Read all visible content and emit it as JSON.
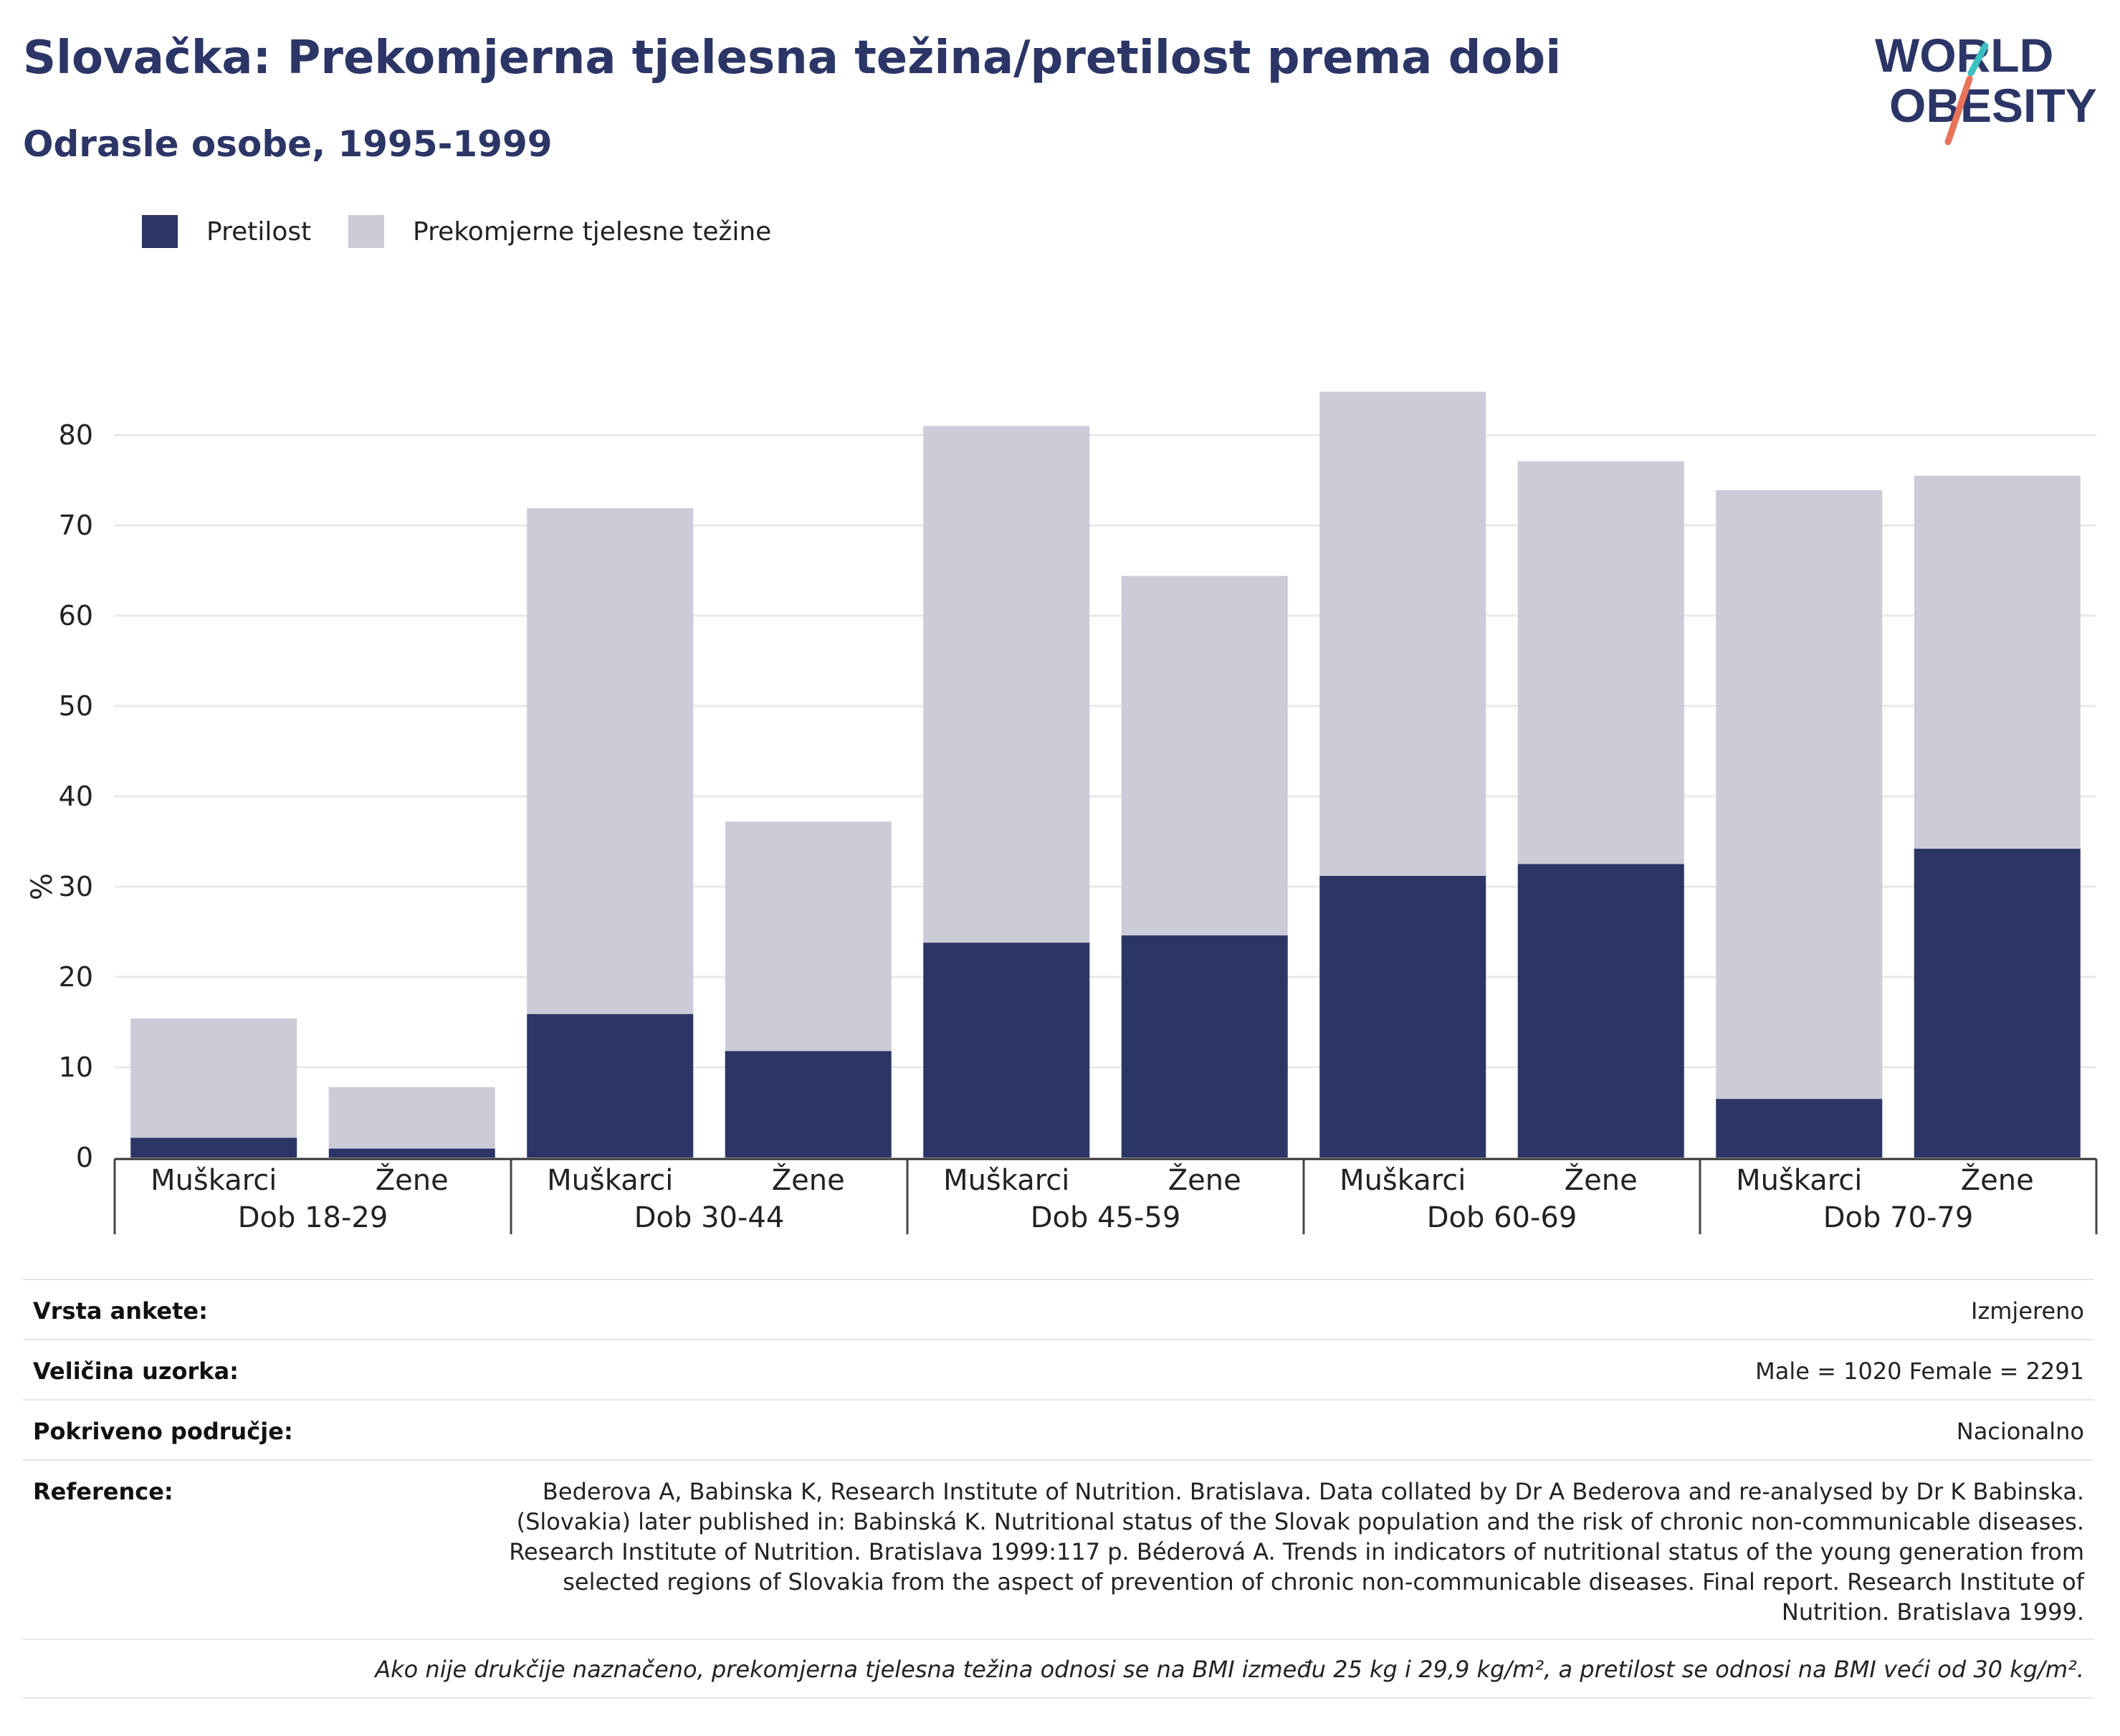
{
  "header": {
    "title": "Slovačka: Prekomjerna tjelesna težina/pretilost prema dobi",
    "subtitle": "Odrasle osobe, 1995-1999"
  },
  "logo": {
    "line1": "WORLD",
    "line2": "OBESITY",
    "text_color": "#2b3566",
    "accent_teal": "#3cc0c0",
    "accent_coral": "#e8735a"
  },
  "legend": {
    "items": [
      {
        "label": "Pretilost",
        "color": "#2b3566"
      },
      {
        "label": "Prekomjerne tjelesne težine",
        "color": "#cbccd8"
      }
    ]
  },
  "chart_data": {
    "type": "bar",
    "stacked": true,
    "ylabel": "%",
    "ylim": [
      0,
      90
    ],
    "yticks": [
      0,
      10,
      20,
      30,
      40,
      50,
      60,
      70,
      80
    ],
    "grid": true,
    "legend_position": "top-left",
    "groups": [
      {
        "label": "Dob 18-29",
        "categories": [
          "Muškarci",
          "Žene"
        ]
      },
      {
        "label": "Dob 30-44",
        "categories": [
          "Muškarci",
          "Žene"
        ]
      },
      {
        "label": "Dob 45-59",
        "categories": [
          "Muškarci",
          "Žene"
        ]
      },
      {
        "label": "Dob 60-69",
        "categories": [
          "Muškarci",
          "Žene"
        ]
      },
      {
        "label": "Dob 70-79",
        "categories": [
          "Muškarci",
          "Žene"
        ]
      }
    ],
    "series": [
      {
        "name": "Pretilost",
        "color": "#2b3566",
        "values": [
          2.2,
          1.0,
          15.9,
          11.8,
          23.8,
          24.6,
          31.2,
          32.5,
          6.5,
          34.2
        ]
      },
      {
        "name": "Prekomjerne tjelesne težine",
        "color": "#cbccd8",
        "values": [
          13.2,
          6.8,
          56.0,
          25.4,
          57.2,
          39.8,
          53.6,
          44.6,
          67.4,
          41.3
        ]
      }
    ]
  },
  "info": {
    "survey_type_label": "Vrsta ankete:",
    "survey_type_value": "Izmjereno",
    "sample_size_label": "Veličina uzorka:",
    "sample_size_value": "Male = 1020 Female = 2291",
    "coverage_label": "Pokriveno područje:",
    "coverage_value": "Nacionalno",
    "reference_label": "Reference:",
    "reference_value": "Bederova A, Babinska K, Research Institute of Nutrition. Bratislava. Data collated by Dr A Bederova and re-analysed by Dr K Babinska. (Slovakia) later published in: Babinská K. Nutritional status of the Slovak population and the risk of chronic non-communicable diseases. Research Institute of Nutrition. Bratislava 1999:117 p. Béderová A. Trends in indicators of nutritional status of the young generation from selected regions of Slovakia from the aspect of prevention of chronic non-communicable diseases. Final report. Research Institute of Nutrition. Bratislava 1999.",
    "note": "Ako nije drukčije naznačeno, prekomjerna tjelesna težina odnosi se na BMI između 25 kg i 29,9 kg/m², a pretilost se odnosi na BMI veći od 30 kg/m²."
  }
}
